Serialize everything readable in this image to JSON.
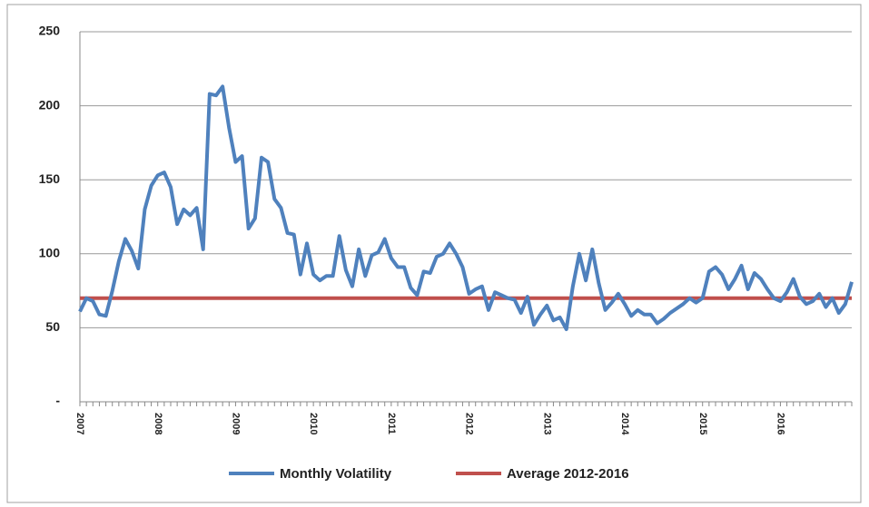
{
  "chart_data": {
    "type": "line",
    "categories": [
      "2007",
      null,
      null,
      null,
      null,
      null,
      null,
      null,
      null,
      null,
      null,
      null,
      "2008",
      null,
      null,
      null,
      null,
      null,
      null,
      null,
      null,
      null,
      null,
      null,
      "2009",
      null,
      null,
      null,
      null,
      null,
      null,
      null,
      null,
      null,
      null,
      null,
      "2010",
      null,
      null,
      null,
      null,
      null,
      null,
      null,
      null,
      null,
      null,
      null,
      "2011",
      null,
      null,
      null,
      null,
      null,
      null,
      null,
      null,
      null,
      null,
      null,
      "2012",
      null,
      null,
      null,
      null,
      null,
      null,
      null,
      null,
      null,
      null,
      null,
      "2013",
      null,
      null,
      null,
      null,
      null,
      null,
      null,
      null,
      null,
      null,
      null,
      "2014",
      null,
      null,
      null,
      null,
      null,
      null,
      null,
      null,
      null,
      null,
      null,
      "2015",
      null,
      null,
      null,
      null,
      null,
      null,
      null,
      null,
      null,
      null,
      null,
      "2016",
      null,
      null,
      null,
      null,
      null,
      null,
      null,
      null,
      null,
      null,
      null
    ],
    "series": [
      {
        "name": "Monthly Volatility",
        "color": "#4f81bd",
        "values": [
          61,
          70,
          68,
          59,
          58,
          75,
          95,
          110,
          102,
          90,
          130,
          146,
          153,
          155,
          145,
          120,
          130,
          126,
          131,
          103,
          208,
          207,
          213,
          185,
          162,
          166,
          117,
          124,
          165,
          162,
          137,
          131,
          114,
          113,
          86,
          107,
          86,
          82,
          85,
          85,
          112,
          89,
          78,
          103,
          85,
          99,
          101,
          110,
          97,
          91,
          91,
          77,
          72,
          88,
          87,
          98,
          100,
          107,
          100,
          91,
          73,
          76,
          78,
          62,
          74,
          72,
          70,
          69,
          60,
          71,
          52,
          59,
          65,
          55,
          57,
          49,
          78,
          100,
          82,
          103,
          80,
          62,
          67,
          73,
          66,
          58,
          62,
          59,
          59,
          53,
          56,
          60,
          63,
          66,
          70,
          67,
          70,
          88,
          91,
          86,
          76,
          83,
          92,
          76,
          87,
          83,
          76,
          70,
          68,
          74,
          83,
          71,
          66,
          68,
          73,
          64,
          70,
          60,
          66,
          81
        ]
      },
      {
        "name": "Average 2012-2016",
        "color": "#c0504d",
        "values": [
          70,
          70,
          70,
          70,
          70,
          70,
          70,
          70,
          70,
          70,
          70,
          70,
          70,
          70,
          70,
          70,
          70,
          70,
          70,
          70,
          70,
          70,
          70,
          70,
          70,
          70,
          70,
          70,
          70,
          70,
          70,
          70,
          70,
          70,
          70,
          70,
          70,
          70,
          70,
          70,
          70,
          70,
          70,
          70,
          70,
          70,
          70,
          70,
          70,
          70,
          70,
          70,
          70,
          70,
          70,
          70,
          70,
          70,
          70,
          70,
          70,
          70,
          70,
          70,
          70,
          70,
          70,
          70,
          70,
          70,
          70,
          70,
          70,
          70,
          70,
          70,
          70,
          70,
          70,
          70,
          70,
          70,
          70,
          70,
          70,
          70,
          70,
          70,
          70,
          70,
          70,
          70,
          70,
          70,
          70,
          70,
          70,
          70,
          70,
          70,
          70,
          70,
          70,
          70,
          70,
          70,
          70,
          70,
          70,
          70,
          70,
          70,
          70,
          70,
          70,
          70,
          70,
          70,
          70,
          70
        ]
      }
    ],
    "ylim": [
      0,
      250
    ],
    "yticks": [
      {
        "value": 0,
        "label": "-"
      },
      50,
      100,
      150,
      200,
      250
    ],
    "grid": true,
    "legend": "bottom"
  }
}
